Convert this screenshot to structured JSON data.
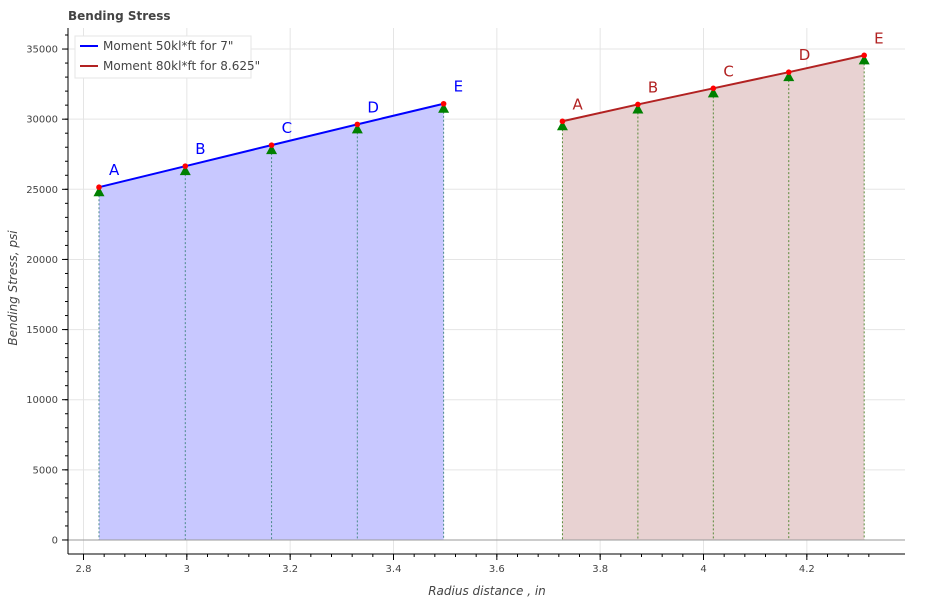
{
  "chart_data": {
    "type": "line",
    "title": "Bending Stress",
    "xlabel": "Radius distance , in",
    "ylabel": "Bending Stress, psi",
    "xlim": [
      2.77,
      4.39
    ],
    "ylim": [
      -1000,
      36500
    ],
    "x_ticks": [
      2.8,
      3,
      3.2,
      3.4,
      3.6,
      3.8,
      4,
      4.2
    ],
    "x_tick_labels": [
      "2.8",
      "3",
      "3.2",
      "3.4",
      "3.6",
      "3.8",
      "4",
      "4.2"
    ],
    "y_ticks": [
      0,
      5000,
      10000,
      15000,
      20000,
      25000,
      30000,
      35000
    ],
    "y_tick_labels": [
      "0",
      "5000",
      "10000",
      "15000",
      "20000",
      "25000",
      "30000",
      "35000"
    ],
    "grid": true,
    "legend_position": "top-left",
    "series": [
      {
        "name": "Moment 50kl*ft for 7\"",
        "color": "#0000ff",
        "fill": "#c8c8ff",
        "x": [
          2.83,
          2.997,
          3.164,
          3.33,
          3.497
        ],
        "y": [
          25150,
          26650,
          28150,
          29630,
          31100
        ],
        "labels": [
          "A",
          "B",
          "C",
          "D",
          "E"
        ]
      },
      {
        "name": "Moment 80kl*ft for 8.625\"",
        "color": "#b22222",
        "fill": "#e8d2d2",
        "x": [
          3.727,
          3.873,
          4.019,
          4.165,
          4.311
        ],
        "y": [
          29850,
          31050,
          32200,
          33350,
          34550
        ],
        "labels": [
          "A",
          "B",
          "C",
          "D",
          "E"
        ]
      }
    ],
    "marker_triangle_color": "#008000",
    "marker_dot_color": "#ff0000"
  }
}
